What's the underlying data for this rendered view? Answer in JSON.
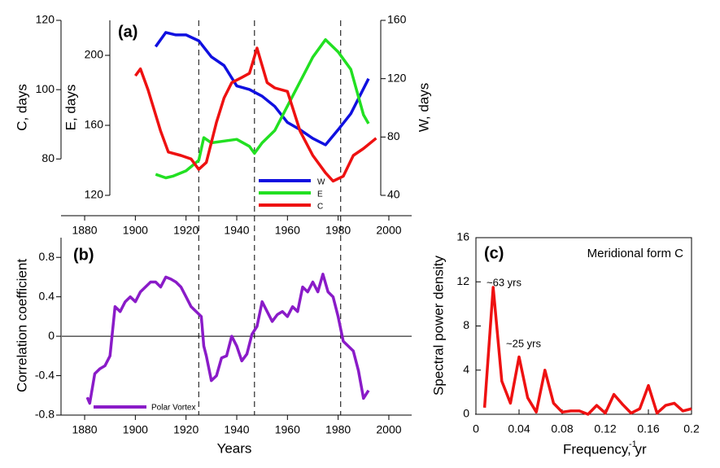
{
  "chart_data": [
    {
      "type": "line",
      "panel_label": "(a)",
      "xlim": [
        1871,
        2009
      ],
      "xticks": [
        1880,
        1900,
        1920,
        1940,
        1960,
        1980,
        2000
      ],
      "ylabel": "C, days",
      "ylim": [
        69.5,
        120
      ],
      "yticks": [
        80,
        100,
        120
      ],
      "y2label": "E, days",
      "y2lim": [
        120,
        220
      ],
      "y2ticks": [
        120,
        160,
        200
      ],
      "y3label": "W, days",
      "y3lim": [
        40,
        160
      ],
      "y3ticks": [
        40,
        80,
        120,
        160
      ],
      "dashed_lines": [
        1925,
        1947,
        1981
      ],
      "series": [
        {
          "name": "W",
          "color": "#1010e0",
          "axis": "y3",
          "x": [
            1908,
            1912,
            1916,
            1920,
            1925,
            1930,
            1935,
            1940,
            1945,
            1950,
            1955,
            1960,
            1965,
            1970,
            1975,
            1980,
            1985,
            1992
          ],
          "values": [
            142,
            151.7,
            150,
            150,
            146,
            135,
            129,
            115,
            112.6,
            108,
            101,
            90,
            85,
            79,
            74.6,
            85,
            96,
            120
          ]
        },
        {
          "name": "E",
          "color": "#22e022",
          "axis": "y2",
          "x": [
            1908,
            1912,
            1915,
            1920,
            1925,
            1927,
            1930,
            1935,
            1940,
            1945,
            1947,
            1950,
            1955,
            1960,
            1965,
            1970,
            1975,
            1980,
            1985,
            1990,
            1992
          ],
          "values": [
            132,
            130,
            131,
            134,
            140,
            153,
            150,
            151,
            152,
            148,
            144,
            150,
            157,
            171,
            185,
            199,
            209,
            202,
            192,
            166,
            161
          ]
        },
        {
          "name": "C",
          "color": "#ee1111",
          "axis": "y",
          "x": [
            1900,
            1902,
            1905,
            1910,
            1913,
            1918,
            1922,
            1925,
            1928,
            1932,
            1935,
            1938,
            1942,
            1945,
            1948,
            1952,
            1955,
            1960,
            1965,
            1970,
            1975,
            1978,
            1982,
            1986,
            1990,
            1995
          ],
          "values": [
            104,
            106,
            100,
            88,
            82,
            81,
            80,
            77,
            79,
            90.6,
            97.6,
            102,
            103.5,
            104.7,
            112,
            102,
            100.5,
            99.5,
            88,
            81,
            76,
            73.6,
            75,
            81,
            83,
            86
          ]
        }
      ]
    },
    {
      "type": "line",
      "panel_label": "(b)",
      "xlabel": "Years",
      "ylabel": "Correlation coefficient",
      "xlim": [
        1871,
        2009
      ],
      "xticks": [
        1880,
        1900,
        1920,
        1940,
        1960,
        1980,
        2000
      ],
      "ylim": [
        -0.8,
        1
      ],
      "yticks": [
        -0.8,
        -0.4,
        0,
        0.4,
        0.8
      ],
      "series": [
        {
          "name": "Polar Vortex",
          "color": "#8a1bc8",
          "x": [
            1881,
            1882,
            1884,
            1886,
            1888,
            1890,
            1892,
            1894,
            1896,
            1898,
            1900,
            1902,
            1904,
            1906,
            1908,
            1910,
            1912,
            1914,
            1916,
            1918,
            1920,
            1922,
            1924,
            1926,
            1927,
            1928,
            1930,
            1932,
            1934,
            1936,
            1938,
            1940,
            1942,
            1944,
            1946,
            1948,
            1950,
            1952,
            1954,
            1956,
            1958,
            1960,
            1962,
            1964,
            1966,
            1968,
            1970,
            1972,
            1974,
            1976,
            1978,
            1980,
            1982,
            1984,
            1986,
            1988,
            1990,
            1992
          ],
          "values": [
            -0.62,
            -0.68,
            -0.38,
            -0.33,
            -0.3,
            -0.2,
            0.3,
            0.25,
            0.35,
            0.4,
            0.35,
            0.45,
            0.5,
            0.55,
            0.55,
            0.5,
            0.6,
            0.58,
            0.55,
            0.5,
            0.4,
            0.3,
            0.25,
            0.2,
            -0.1,
            -0.2,
            -0.45,
            -0.4,
            -0.22,
            -0.2,
            0,
            -0.1,
            -0.25,
            -0.18,
            0.02,
            0.1,
            0.35,
            0.25,
            0.15,
            0.22,
            0.25,
            0.2,
            0.3,
            0.25,
            0.5,
            0.45,
            0.55,
            0.45,
            0.63,
            0.45,
            0.4,
            0.2,
            -0.05,
            -0.1,
            -0.15,
            -0.35,
            -0.63,
            -0.55
          ]
        }
      ]
    },
    {
      "type": "line",
      "panel_label": "(c)",
      "title": "Meridional form C",
      "xlabel": "Frequency, yr",
      "xlabel_sup": "-1",
      "ylabel": "Spectral power density",
      "annotations": [
        "~63 yrs",
        "~25 yrs"
      ],
      "xlim": [
        0,
        0.2
      ],
      "xticks": [
        0,
        0.04,
        0.08,
        0.12,
        0.16,
        0.2
      ],
      "ylim": [
        0,
        16
      ],
      "yticks": [
        0,
        4,
        8,
        12,
        16
      ],
      "series": [
        {
          "color": "#ee1111",
          "x": [
            0.008,
            0.016,
            0.024,
            0.032,
            0.04,
            0.048,
            0.056,
            0.064,
            0.072,
            0.08,
            0.088,
            0.096,
            0.104,
            0.112,
            0.12,
            0.128,
            0.136,
            0.144,
            0.152,
            0.16,
            0.168,
            0.176,
            0.184,
            0.192,
            0.2
          ],
          "values": [
            0.6,
            11.5,
            3,
            1,
            5.2,
            1.5,
            0.2,
            4,
            1,
            0.2,
            0.3,
            0.3,
            0,
            0.8,
            0.1,
            1.8,
            0.9,
            0.1,
            0.5,
            2.6,
            0.1,
            0.8,
            1,
            0.3,
            0.5
          ]
        }
      ]
    }
  ]
}
